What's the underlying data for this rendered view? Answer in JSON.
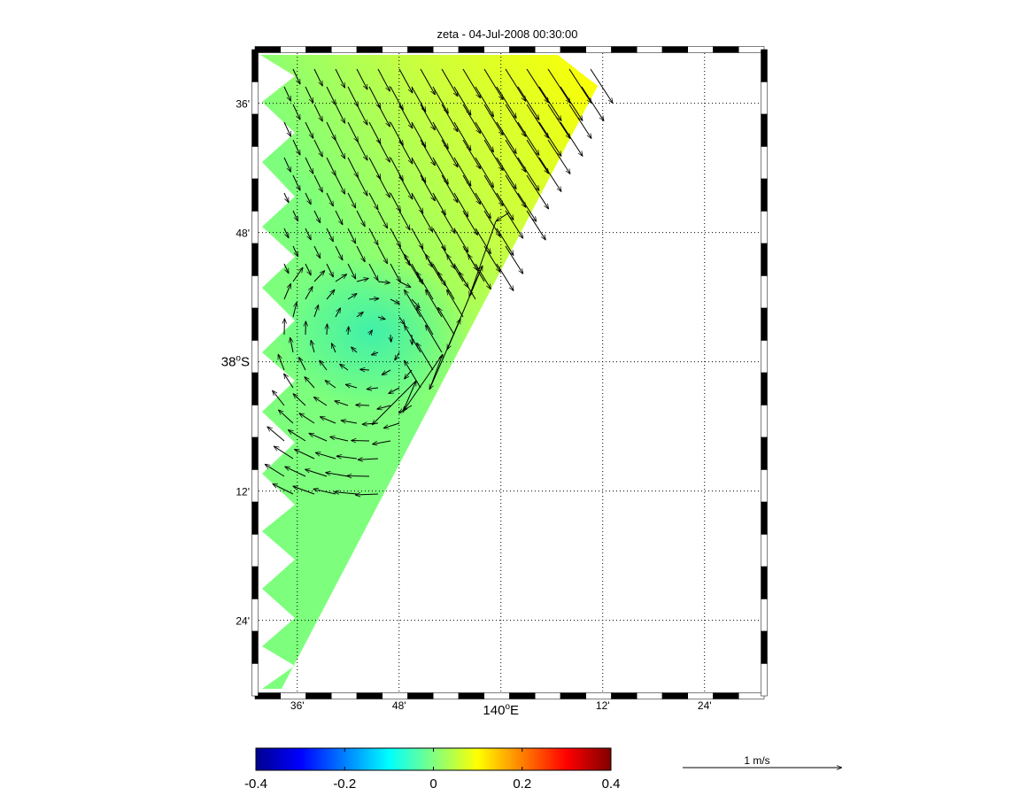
{
  "title": "zeta - 04-Jul-2008 00:30:00",
  "map": {
    "lon_ticks": [
      {
        "value": 139.6,
        "label": "36'"
      },
      {
        "value": 139.8,
        "label": "48'"
      },
      {
        "value": 140.0,
        "label": "140",
        "deg": "o",
        "suffix": "E"
      },
      {
        "value": 140.2,
        "label": "12'"
      },
      {
        "value": 140.4,
        "label": "24'"
      }
    ],
    "lat_ticks": [
      {
        "value": -37.6,
        "label": "36'"
      },
      {
        "value": -37.8,
        "label": "48'"
      },
      {
        "value": -38.0,
        "label": "38",
        "deg": "o",
        "suffix": "S"
      },
      {
        "value": -38.2,
        "label": "12'"
      },
      {
        "value": -38.4,
        "label": "24'"
      }
    ],
    "lon_range": [
      139.517,
      140.517
    ],
    "lat_range": [
      -37.517,
      -38.517
    ],
    "grid": true,
    "field": "zeta",
    "field_colors": {
      "low": "#40f0a8",
      "mid": "#7dff7d",
      "high": "#ffff00"
    },
    "vector_field": "depth-averaged current arrows"
  },
  "colorbar": {
    "colormap": "jet",
    "range": [
      -0.4,
      0.4
    ],
    "tick_labels": [
      "-0.4",
      "-0.2",
      "0",
      "0.2",
      "0.4"
    ]
  },
  "scale_arrow": {
    "label": "1 m/s"
  }
}
